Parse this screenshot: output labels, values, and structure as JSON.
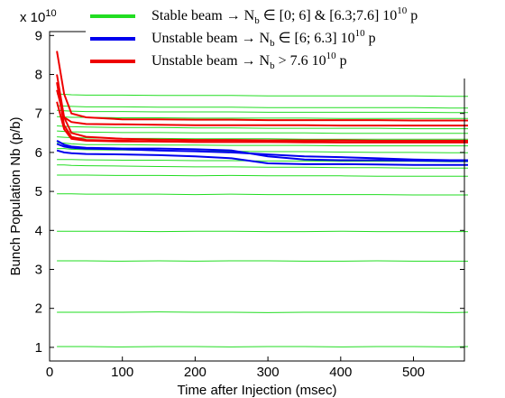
{
  "chart_data": {
    "type": "line",
    "y_multiplier": {
      "base": "x 10",
      "exponent": "10"
    },
    "xlabel": "Time after Injection (msec)",
    "ylabel": "Bunch Population Nb (p/b)",
    "x": [
      10,
      20,
      30,
      50,
      100,
      150,
      200,
      250,
      300,
      350,
      400,
      450,
      500,
      550,
      575
    ],
    "xlim": [
      0,
      570
    ],
    "xticks": [
      0,
      100,
      200,
      300,
      400,
      500
    ],
    "ylim": [
      0.65,
      9.1
    ],
    "yticks": [
      1,
      2,
      3,
      4,
      5,
      6,
      7,
      8,
      9
    ],
    "legend_position": "top",
    "series": [
      {
        "name": [
          {
            "t": "Stable beam → N"
          },
          {
            "t": "b",
            "sub": true
          },
          {
            "t": " ∈ [0; 6] & [6.3;7.6] 10"
          },
          {
            "t": "10",
            "sup": true
          },
          {
            "t": " p"
          }
        ],
        "color": "#22dd22",
        "lines": [
          [
            1.02,
            1.02,
            1.02,
            1.02,
            1.01,
            1.02,
            1.02,
            1.01,
            1.02,
            1.02,
            1.01,
            1.02,
            1.02,
            1.01,
            1.02
          ],
          [
            1.9,
            1.9,
            1.9,
            1.9,
            1.9,
            1.91,
            1.9,
            1.9,
            1.89,
            1.9,
            1.9,
            1.9,
            1.9,
            1.89,
            1.9
          ],
          [
            3.22,
            3.22,
            3.22,
            3.22,
            3.21,
            3.22,
            3.21,
            3.22,
            3.22,
            3.21,
            3.21,
            3.22,
            3.21,
            3.21,
            3.21
          ],
          [
            3.98,
            3.98,
            3.98,
            3.98,
            3.98,
            3.97,
            3.98,
            3.98,
            3.97,
            3.97,
            3.98,
            3.97,
            3.97,
            3.97,
            3.97
          ],
          [
            4.94,
            4.94,
            4.94,
            4.93,
            4.93,
            4.93,
            4.92,
            4.93,
            4.92,
            4.92,
            4.92,
            4.92,
            4.91,
            4.91,
            4.91
          ],
          [
            5.42,
            5.42,
            5.42,
            5.42,
            5.41,
            5.41,
            5.4,
            5.41,
            5.4,
            5.4,
            5.4,
            5.39,
            5.39,
            5.39,
            5.39
          ],
          [
            5.68,
            5.68,
            5.67,
            5.66,
            5.65,
            5.64,
            5.63,
            5.63,
            5.62,
            5.62,
            5.61,
            5.61,
            5.6,
            5.6,
            5.6
          ],
          [
            5.82,
            5.82,
            5.82,
            5.81,
            5.8,
            5.8,
            5.79,
            5.79,
            5.78,
            5.78,
            5.77,
            5.77,
            5.77,
            5.76,
            5.76
          ],
          [
            6.1,
            6.1,
            6.08,
            6.07,
            6.06,
            6.05,
            6.04,
            6.03,
            6.02,
            6.02,
            6.01,
            6.0,
            6.0,
            5.99,
            5.99
          ],
          [
            6.25,
            6.24,
            6.22,
            6.2,
            6.2,
            6.19,
            6.19,
            6.18,
            6.18,
            6.18,
            6.17,
            6.17,
            6.17,
            6.17,
            6.17
          ],
          [
            6.4,
            6.39,
            6.38,
            6.37,
            6.36,
            6.36,
            6.35,
            6.35,
            6.35,
            6.34,
            6.34,
            6.34,
            6.34,
            6.34,
            6.34
          ],
          [
            6.55,
            6.54,
            6.53,
            6.52,
            6.51,
            6.51,
            6.5,
            6.5,
            6.5,
            6.5,
            6.49,
            6.49,
            6.49,
            6.49,
            6.49
          ],
          [
            6.68,
            6.67,
            6.66,
            6.65,
            6.64,
            6.64,
            6.63,
            6.63,
            6.62,
            6.62,
            6.62,
            6.62,
            6.61,
            6.61,
            6.61
          ],
          [
            6.92,
            6.91,
            6.9,
            6.9,
            6.89,
            6.89,
            6.88,
            6.88,
            6.88,
            6.88,
            6.87,
            6.87,
            6.87,
            6.87,
            6.87
          ],
          [
            7.08,
            7.07,
            7.06,
            7.05,
            7.05,
            7.04,
            7.04,
            7.04,
            7.03,
            7.03,
            7.03,
            7.03,
            7.03,
            7.02,
            7.02
          ],
          [
            7.2,
            7.19,
            7.18,
            7.17,
            7.17,
            7.16,
            7.16,
            7.16,
            7.15,
            7.15,
            7.15,
            7.15,
            7.15,
            7.14,
            7.14
          ],
          [
            7.5,
            7.49,
            7.48,
            7.47,
            7.47,
            7.46,
            7.46,
            7.46,
            7.45,
            7.45,
            7.45,
            7.45,
            7.45,
            7.44,
            7.44
          ]
        ]
      },
      {
        "name": [
          {
            "t": "Unstable beam  →  N"
          },
          {
            "t": "b",
            "sub": true
          },
          {
            "t": " ∈ [6; 6.3] 10"
          },
          {
            "t": "10",
            "sup": true
          },
          {
            "t": " p"
          }
        ],
        "color": "#0000ee",
        "lines": [
          [
            6.3,
            6.2,
            6.15,
            6.12,
            6.1,
            6.1,
            6.08,
            6.05,
            5.9,
            5.82,
            5.8,
            5.8,
            5.79,
            5.78,
            5.78
          ],
          [
            6.05,
            6.0,
            5.98,
            5.96,
            5.95,
            5.93,
            5.9,
            5.85,
            5.72,
            5.7,
            5.7,
            5.69,
            5.68,
            5.68,
            5.68
          ],
          [
            6.22,
            6.15,
            6.12,
            6.1,
            6.08,
            6.05,
            6.03,
            6.0,
            5.95,
            5.9,
            5.88,
            5.85,
            5.82,
            5.8,
            5.8
          ]
        ]
      },
      {
        "name": [
          {
            "t": "Unstable beam  →  N"
          },
          {
            "t": "b",
            "sub": true
          },
          {
            "t": " > 7.6 10"
          },
          {
            "t": "10",
            "sup": true
          },
          {
            "t": "  p"
          }
        ],
        "color": "#ee0000",
        "lines": [
          [
            8.6,
            7.5,
            7.0,
            6.9,
            6.85,
            6.85,
            6.84,
            6.84,
            6.83,
            6.83,
            6.83,
            6.83,
            6.82,
            6.82,
            6.82
          ],
          [
            8.0,
            6.9,
            6.5,
            6.4,
            6.35,
            6.33,
            6.32,
            6.32,
            6.31,
            6.31,
            6.31,
            6.3,
            6.3,
            6.3,
            6.3
          ],
          [
            7.8,
            6.7,
            6.4,
            6.32,
            6.3,
            6.28,
            6.27,
            6.27,
            6.27,
            6.26,
            6.26,
            6.26,
            6.26,
            6.26,
            6.26
          ],
          [
            7.6,
            6.9,
            6.78,
            6.73,
            6.72,
            6.71,
            6.7,
            6.7,
            6.7,
            6.7,
            6.69,
            6.69,
            6.69,
            6.69,
            6.69
          ],
          [
            7.3,
            6.6,
            6.35,
            6.3,
            6.28,
            6.28,
            6.27,
            6.27,
            6.27,
            6.27,
            6.26,
            6.26,
            6.26,
            6.26,
            6.26
          ]
        ]
      }
    ]
  }
}
